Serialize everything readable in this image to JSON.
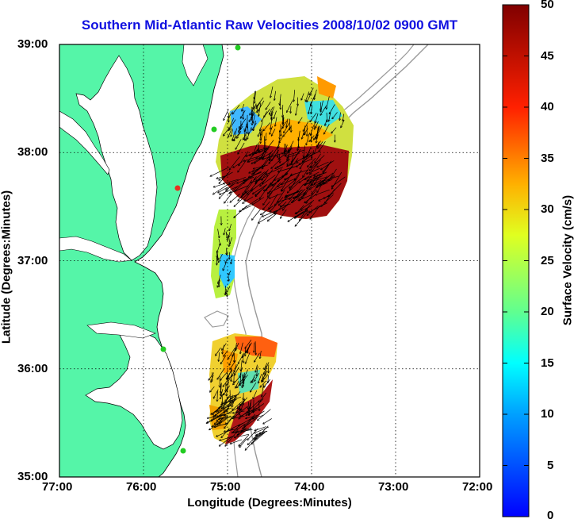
{
  "title": "Southern Mid-Atlantic Raw Velocities 2008/10/02 0900 GMT",
  "xlabel": "Longitude (Degrees:Minutes)",
  "ylabel": "Latitude (Degrees:Minutes)",
  "x_ticks": [
    "77:00",
    "76:00",
    "75:00",
    "74:00",
    "73:00",
    "72:00"
  ],
  "y_ticks": [
    "39:00",
    "38:00",
    "37:00",
    "36:00",
    "35:00"
  ],
  "colorbar": {
    "label": "Surface Velocity (cm/s)",
    "ticks": [
      "50",
      "45",
      "40",
      "35",
      "30",
      "25",
      "20",
      "15",
      "10",
      "5",
      "0"
    ],
    "range": [
      0,
      50
    ]
  },
  "colors": {
    "title": "#1010e0",
    "land": "#55f5a8",
    "coastline": "#000000",
    "bathymetry": "#999999",
    "grid": "#000000"
  },
  "markers": {
    "site_color_green": "#22cc22",
    "site_color_red": "#e83020"
  }
}
